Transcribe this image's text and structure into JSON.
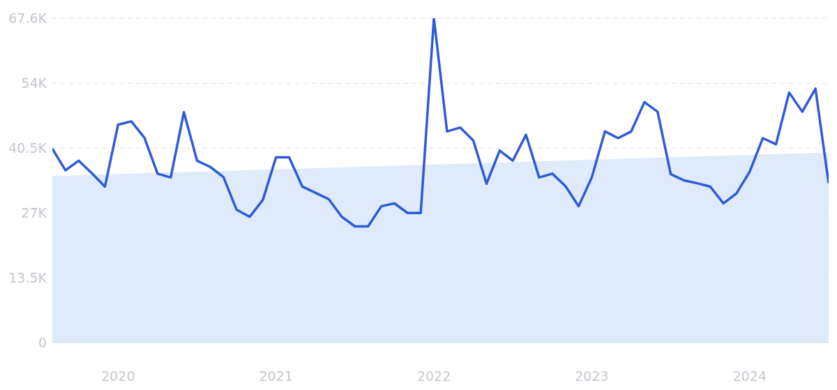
{
  "chart_data": {
    "type": "line",
    "x": [
      "2019-08",
      "2019-09",
      "2019-10",
      "2019-11",
      "2019-12",
      "2020-01",
      "2020-02",
      "2020-03",
      "2020-04",
      "2020-05",
      "2020-06",
      "2020-07",
      "2020-08",
      "2020-09",
      "2020-10",
      "2020-11",
      "2020-12",
      "2021-01",
      "2021-02",
      "2021-03",
      "2021-04",
      "2021-05",
      "2021-06",
      "2021-07",
      "2021-08",
      "2021-09",
      "2021-10",
      "2021-11",
      "2021-12",
      "2022-01",
      "2022-02",
      "2022-03",
      "2022-04",
      "2022-05",
      "2022-06",
      "2022-07",
      "2022-08",
      "2022-09",
      "2022-10",
      "2022-11",
      "2022-12",
      "2023-01",
      "2023-02",
      "2023-03",
      "2023-04",
      "2023-05",
      "2023-06",
      "2023-07",
      "2023-08",
      "2023-09",
      "2023-10",
      "2023-11",
      "2023-12",
      "2024-01",
      "2024-02",
      "2024-03",
      "2024-04",
      "2024-05",
      "2024-06",
      "2024-07"
    ],
    "series": [
      {
        "type": "area",
        "color": "#dce9fb",
        "x": [
          "2019-08",
          "2024-07"
        ],
        "values": [
          34700,
          39600
        ]
      },
      {
        "color": "#2d5bd6",
        "values": [
          40400,
          35900,
          37900,
          35300,
          32500,
          45400,
          46100,
          42700,
          35200,
          34400,
          48000,
          37900,
          36600,
          34500,
          27700,
          26200,
          29700,
          38600,
          38600,
          32500,
          31200,
          29900,
          26200,
          24200,
          24200,
          28400,
          29000,
          27000,
          27000,
          67600,
          44000,
          44800,
          42100,
          33100,
          40000,
          37900,
          43300,
          34400,
          35200,
          32600,
          28400,
          34400,
          44000,
          42600,
          44000,
          50100,
          48100,
          35100,
          33800,
          33200,
          32500,
          29000,
          31100,
          35600,
          42600,
          41300,
          52100,
          48100,
          52900,
          33200
        ]
      }
    ],
    "xlim": [
      "2019-08",
      "2024-07"
    ],
    "xticks": [
      "2020",
      "2021",
      "2022",
      "2023",
      "2024"
    ],
    "ylim": [
      0,
      67600
    ],
    "yticks": [
      0,
      {
        "value": 13500,
        "label": "13.5K"
      },
      {
        "value": 27000,
        "label": "27K"
      },
      {
        "value": 40500,
        "label": "40.5K"
      },
      {
        "value": 54000,
        "label": "54K"
      },
      {
        "value": 67600,
        "label": "67.6K"
      }
    ],
    "grid": "y"
  }
}
